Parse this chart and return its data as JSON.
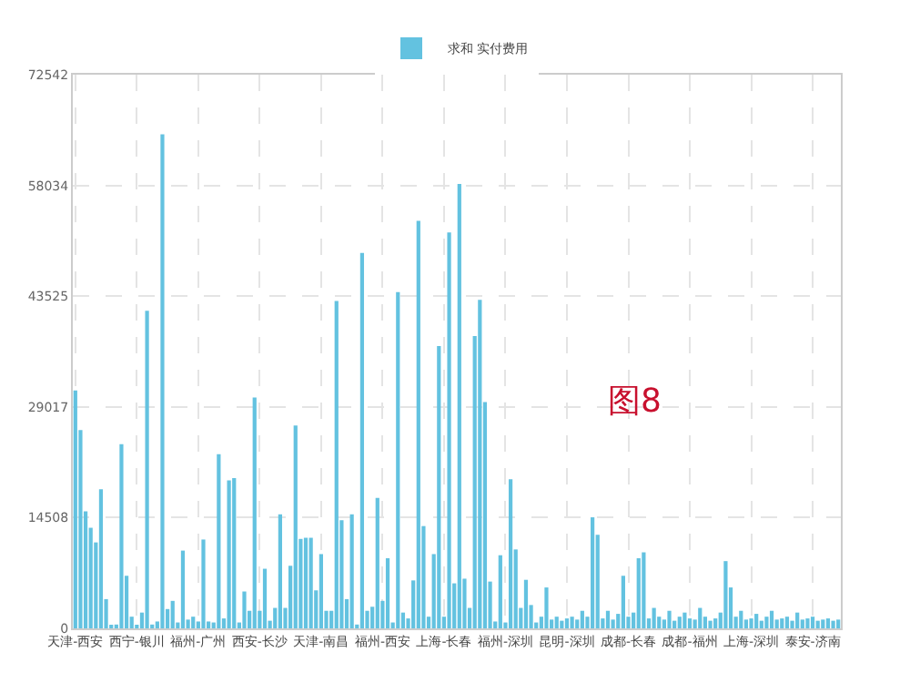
{
  "chart_data": {
    "type": "bar",
    "categories": [
      "天津-西安",
      null,
      null,
      null,
      null,
      null,
      null,
      null,
      null,
      null,
      null,
      null,
      "西宁-银川",
      null,
      null,
      null,
      null,
      null,
      null,
      null,
      null,
      null,
      null,
      null,
      "福州-广州",
      null,
      null,
      null,
      null,
      null,
      null,
      null,
      null,
      null,
      null,
      null,
      "西安-长沙",
      null,
      null,
      null,
      null,
      null,
      null,
      null,
      null,
      null,
      null,
      null,
      "天津-南昌",
      null,
      null,
      null,
      null,
      null,
      null,
      null,
      null,
      null,
      null,
      null,
      "福州-西安",
      null,
      null,
      null,
      null,
      null,
      null,
      null,
      null,
      null,
      null,
      null,
      "上海-长春",
      null,
      null,
      null,
      null,
      null,
      null,
      null,
      null,
      null,
      null,
      null,
      "福州-深圳",
      null,
      null,
      null,
      null,
      null,
      null,
      null,
      null,
      null,
      null,
      null,
      "昆明-深圳",
      null,
      null,
      null,
      null,
      null,
      null,
      null,
      null,
      null,
      null,
      null,
      "成都-长春",
      null,
      null,
      null,
      null,
      null,
      null,
      null,
      null,
      null,
      null,
      null,
      "成都-福州",
      null,
      null,
      null,
      null,
      null,
      null,
      null,
      null,
      null,
      null,
      null,
      "上海-深圳",
      null,
      null,
      null,
      null,
      null,
      null,
      null,
      null,
      null,
      null,
      null,
      "泰安-济南",
      null,
      null,
      null,
      null,
      null
    ],
    "series": [
      {
        "name": "求和 实付费用",
        "color": "#63c2e0",
        "values": [
          31180,
          25970,
          15320,
          13180,
          11260,
          18230,
          3830,
          400,
          500,
          24130,
          6890,
          1530,
          400,
          2070,
          41600,
          500,
          900,
          64730,
          2530,
          3600,
          770,
          10190,
          1150,
          1530,
          900,
          11640,
          900,
          770,
          22830,
          1300,
          19380,
          19690,
          770,
          4830,
          2300,
          30260,
          2300,
          7810,
          1000,
          2680,
          14940,
          2680,
          8200,
          26580,
          11720,
          11870,
          11870,
          4980,
          9730,
          2300,
          2300,
          42900,
          14170,
          3830,
          14940,
          500,
          49180,
          2300,
          2830,
          17080,
          3600,
          9190,
          770,
          44050,
          2070,
          1300,
          6280,
          53390,
          13400,
          1530,
          9730,
          37000,
          1530,
          51860,
          5900,
          58220,
          6510,
          2680,
          38300,
          43050,
          29640,
          6130,
          900,
          9580,
          770,
          19530,
          10340,
          2680,
          6360,
          3060,
          770,
          1530,
          5360,
          1150,
          1530,
          1000,
          1300,
          1530,
          1150,
          2300,
          1530,
          14550,
          12260,
          1300,
          2300,
          1150,
          1900,
          6890,
          1530,
          2070,
          9190,
          9960,
          1300,
          2680,
          1530,
          1150,
          2300,
          1000,
          1530,
          2070,
          1300,
          1150,
          2680,
          1530,
          1000,
          1300,
          2070,
          8810,
          5360,
          1530,
          2300,
          1150,
          1300,
          1900,
          1000,
          1530,
          2300,
          1150,
          1300,
          1530,
          1000,
          2070,
          1150,
          1300,
          1530,
          1000,
          1150,
          1300,
          1000,
          1150
        ]
      }
    ],
    "ylim": [
      0,
      72542
    ],
    "yticks": [
      0,
      14508,
      29017,
      43525,
      58034,
      72542
    ],
    "grid": true,
    "legend": "top",
    "annotations": [
      "图8"
    ]
  }
}
